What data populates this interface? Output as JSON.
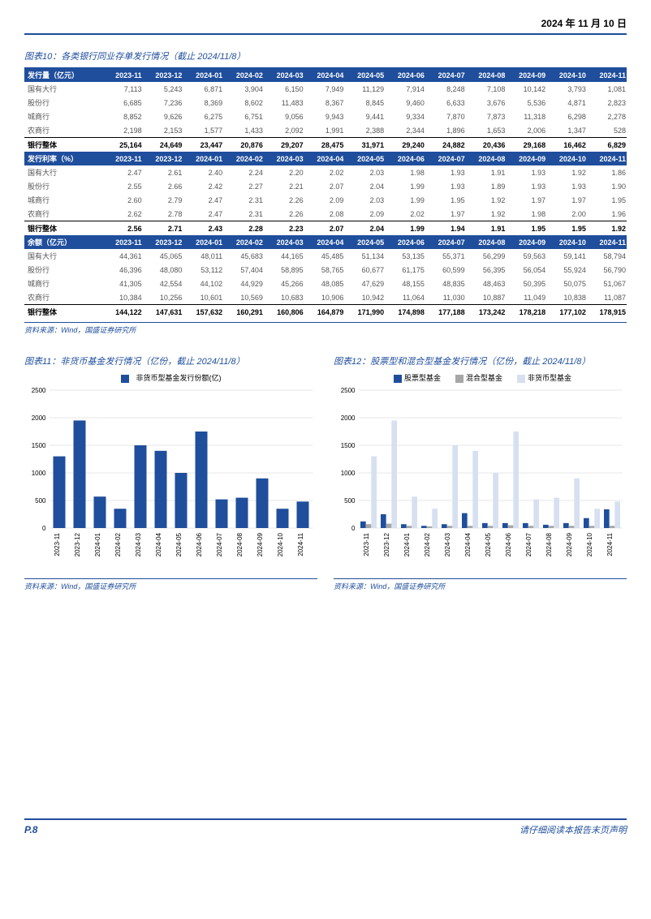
{
  "header_date": "2024 年 11 月 10 日",
  "table10": {
    "title": "图表10：各类银行同业存单发行情况（截止 2024/11/8）",
    "periods": [
      "2023-11",
      "2023-12",
      "2024-01",
      "2024-02",
      "2024-03",
      "2024-04",
      "2024-05",
      "2024-06",
      "2024-07",
      "2024-08",
      "2024-09",
      "2024-10",
      "2024-11"
    ],
    "sections": [
      {
        "header": "发行量（亿元）",
        "rows": [
          {
            "name": "国有大行",
            "vals": [
              "7,113",
              "5,243",
              "6,871",
              "3,904",
              "6,150",
              "7,949",
              "11,129",
              "7,914",
              "8,248",
              "7,108",
              "10,142",
              "3,793",
              "1,081"
            ]
          },
          {
            "name": "股份行",
            "vals": [
              "6,685",
              "7,236",
              "8,369",
              "8,602",
              "11,483",
              "8,367",
              "8,845",
              "9,460",
              "6,633",
              "3,676",
              "5,536",
              "4,871",
              "2,823"
            ]
          },
          {
            "name": "城商行",
            "vals": [
              "8,852",
              "9,626",
              "6,275",
              "6,751",
              "9,056",
              "9,943",
              "9,441",
              "9,334",
              "7,870",
              "7,873",
              "11,318",
              "6,298",
              "2,278"
            ]
          },
          {
            "name": "农商行",
            "vals": [
              "2,198",
              "2,153",
              "1,577",
              "1,433",
              "2,092",
              "1,991",
              "2,388",
              "2,344",
              "1,896",
              "1,653",
              "2,006",
              "1,347",
              "528"
            ]
          }
        ],
        "total": {
          "name": "银行整体",
          "vals": [
            "25,164",
            "24,649",
            "23,447",
            "20,876",
            "29,207",
            "28,475",
            "31,971",
            "29,240",
            "24,882",
            "20,436",
            "29,168",
            "16,462",
            "6,829"
          ]
        }
      },
      {
        "header": "发行利率（%）",
        "rows": [
          {
            "name": "国有大行",
            "vals": [
              "2.47",
              "2.61",
              "2.40",
              "2.24",
              "2.20",
              "2.02",
              "2.03",
              "1.98",
              "1.93",
              "1.91",
              "1.93",
              "1.92",
              "1.86"
            ]
          },
          {
            "name": "股份行",
            "vals": [
              "2.55",
              "2.66",
              "2.42",
              "2.27",
              "2.21",
              "2.07",
              "2.04",
              "1.99",
              "1.93",
              "1.89",
              "1.93",
              "1.93",
              "1.90"
            ]
          },
          {
            "name": "城商行",
            "vals": [
              "2.60",
              "2.79",
              "2.47",
              "2.31",
              "2.26",
              "2.09",
              "2.03",
              "1.99",
              "1.95",
              "1.92",
              "1.97",
              "1.97",
              "1.95"
            ]
          },
          {
            "name": "农商行",
            "vals": [
              "2.62",
              "2.78",
              "2.47",
              "2.31",
              "2.26",
              "2.08",
              "2.09",
              "2.02",
              "1.97",
              "1.92",
              "1.98",
              "2.00",
              "1.96"
            ]
          }
        ],
        "total": {
          "name": "银行整体",
          "vals": [
            "2.56",
            "2.71",
            "2.43",
            "2.28",
            "2.23",
            "2.07",
            "2.04",
            "1.99",
            "1.94",
            "1.91",
            "1.95",
            "1.95",
            "1.92"
          ]
        }
      },
      {
        "header": "余额（亿元）",
        "rows": [
          {
            "name": "国有大行",
            "vals": [
              "44,361",
              "45,065",
              "48,011",
              "45,683",
              "44,165",
              "45,485",
              "51,134",
              "53,135",
              "55,371",
              "56,299",
              "59,563",
              "59,141",
              "58,794"
            ]
          },
          {
            "name": "股份行",
            "vals": [
              "46,396",
              "48,080",
              "53,112",
              "57,404",
              "58,895",
              "58,765",
              "60,677",
              "61,175",
              "60,599",
              "56,395",
              "56,054",
              "55,924",
              "56,790"
            ]
          },
          {
            "name": "城商行",
            "vals": [
              "41,305",
              "42,554",
              "44,102",
              "44,929",
              "45,266",
              "48,085",
              "47,629",
              "48,155",
              "48,835",
              "48,463",
              "50,395",
              "50,075",
              "51,067"
            ]
          },
          {
            "name": "农商行",
            "vals": [
              "10,384",
              "10,256",
              "10,601",
              "10,569",
              "10,683",
              "10,906",
              "10,942",
              "11,064",
              "11,030",
              "10,887",
              "11,049",
              "10,838",
              "11,087"
            ]
          }
        ],
        "total": {
          "name": "银行整体",
          "vals": [
            "144,122",
            "147,631",
            "157,632",
            "160,291",
            "160,806",
            "164,879",
            "171,990",
            "174,898",
            "177,188",
            "173,242",
            "178,218",
            "177,102",
            "178,915"
          ]
        }
      }
    ]
  },
  "source": "资料来源：Wind，国盛证券研究所",
  "chart11": {
    "title": "图表11：非货币基金发行情况（亿份，截止 2024/11/8）",
    "legend": "非货币型基金发行份额(亿)",
    "type": "bar",
    "color": "#1f4e9c",
    "grid_color": "#d0d0d0",
    "ylim": [
      0,
      2500
    ],
    "ytick_step": 500,
    "categories": [
      "2023-11",
      "2023-12",
      "2024-01",
      "2024-02",
      "2024-03",
      "2024-04",
      "2024-05",
      "2024-06",
      "2024-07",
      "2024-08",
      "2024-09",
      "2024-10",
      "2024-11"
    ],
    "values": [
      1300,
      1950,
      570,
      350,
      1500,
      1400,
      1000,
      1750,
      520,
      550,
      900,
      350,
      480
    ]
  },
  "chart12": {
    "title": "图表12：股票型和混合型基金发行情况（亿份，截止 2024/11/8）",
    "type": "grouped-bar",
    "grid_color": "#d0d0d0",
    "ylim": [
      0,
      2500
    ],
    "ytick_step": 500,
    "categories": [
      "2023-11",
      "2023-12",
      "2024-01",
      "2024-02",
      "2024-03",
      "2024-04",
      "2024-05",
      "2024-06",
      "2024-07",
      "2024-08",
      "2024-09",
      "2024-10",
      "2024-11"
    ],
    "series": [
      {
        "name": "股票型基金",
        "color": "#1f4e9c",
        "values": [
          120,
          250,
          70,
          40,
          70,
          270,
          90,
          90,
          90,
          60,
          90,
          180,
          340
        ]
      },
      {
        "name": "混合型基金",
        "color": "#a6a6a6",
        "values": [
          70,
          80,
          40,
          30,
          40,
          40,
          40,
          50,
          40,
          40,
          40,
          40,
          40
        ]
      },
      {
        "name": "非货币型基金",
        "color": "#d6e0f0",
        "values": [
          1300,
          1950,
          570,
          350,
          1500,
          1400,
          1000,
          1750,
          520,
          550,
          900,
          350,
          480
        ]
      }
    ]
  },
  "footer": {
    "page": "P.8",
    "note": "请仔细阅读本报告末页声明"
  }
}
